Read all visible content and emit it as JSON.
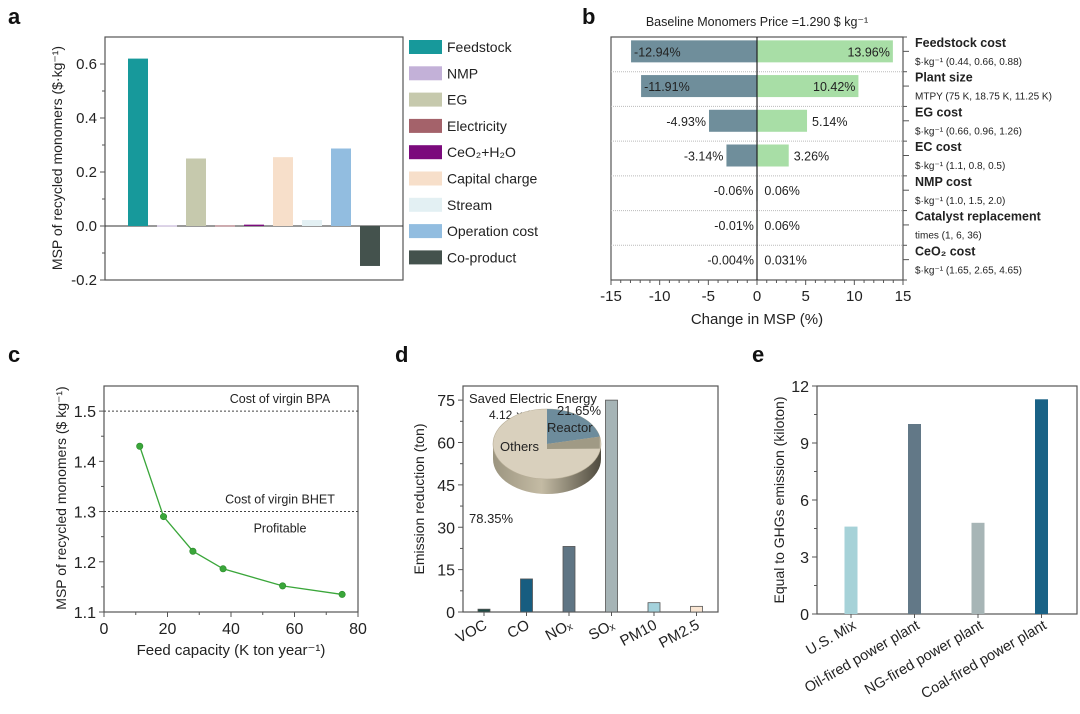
{
  "panels": {
    "a": "a",
    "b": "b",
    "c": "c",
    "d": "d",
    "e": "e"
  },
  "chart_data": [
    {
      "id": "a",
      "type": "bar",
      "title": "",
      "xlabel": "",
      "ylabel": "MSP of recycled monomers ($·kg⁻¹)",
      "ylim": [
        -0.2,
        0.7
      ],
      "yticks": [
        "-0.2",
        "0.0",
        "0.2",
        "0.4",
        "0.6"
      ],
      "ytick_values": [
        -0.2,
        0.0,
        0.2,
        0.4,
        0.6
      ],
      "legend_position": "right",
      "categories": [
        "Feedstock",
        "NMP",
        "EG",
        "Electricity",
        "CeO₂+H₂O",
        "Capital charge",
        "Stream",
        "Operation cost",
        "Co-product"
      ],
      "values": [
        0.62,
        0.002,
        0.25,
        0.002,
        0.005,
        0.255,
        0.022,
        0.287,
        -0.148
      ],
      "colors": [
        "#17999b",
        "#c3b1d8",
        "#c6c9ad",
        "#a4626a",
        "#7b0a7c",
        "#f7dfca",
        "#e3f0f3",
        "#92bde0",
        "#44524d"
      ]
    },
    {
      "id": "b",
      "type": "bar",
      "orientation": "horizontal-tornado",
      "title": "Baseline Monomers Price =1.290 $ kg⁻¹",
      "xlabel": "Change in MSP (%)",
      "xlim": [
        -15,
        15
      ],
      "xticks": [
        "-15",
        "-10",
        "-5",
        "0",
        "5",
        "10",
        "15"
      ],
      "xtick_values": [
        -15,
        -10,
        -5,
        0,
        5,
        10,
        15
      ],
      "factors": [
        {
          "name": "Feedstock cost",
          "range": "$·kg⁻¹ (0.44, 0.66, 0.88)",
          "low": -12.94,
          "high": 13.96,
          "low_label": "-12.94%",
          "high_label": "13.96%"
        },
        {
          "name": "Plant size",
          "range": "MTPY (75 K, 18.75 K, 11.25 K)",
          "low": -11.91,
          "high": 10.42,
          "low_label": "-11.91%",
          "high_label": "10.42%"
        },
        {
          "name": "EG cost",
          "range": "$·kg⁻¹ (0.66, 0.96, 1.26)",
          "low": -4.93,
          "high": 5.14,
          "low_label": "-4.93%",
          "high_label": "5.14%"
        },
        {
          "name": "EC cost",
          "range": "$·kg⁻¹ (1.1, 0.8, 0.5)",
          "low": -3.14,
          "high": 3.26,
          "low_label": "-3.14%",
          "high_label": "3.26%"
        },
        {
          "name": "NMP cost",
          "range": "$·kg⁻¹ (1.0, 1.5, 2.0)",
          "low": -0.06,
          "high": 0.06,
          "low_label": "-0.06%",
          "high_label": "0.06%"
        },
        {
          "name": "Catalyst replacement",
          "range": "times (1, 6, 36)",
          "low": -0.01,
          "high": 0.06,
          "low_label": "-0.01%",
          "high_label": "0.06%"
        },
        {
          "name": "CeO₂ cost",
          "range": "$·kg⁻¹ (1.65, 2.65, 4.65)",
          "low": -0.004,
          "high": 0.031,
          "low_label": "-0.004%",
          "high_label": "0.031%"
        }
      ],
      "colors": {
        "negative": "#6f8e9b",
        "positive": "#a8dea6"
      }
    },
    {
      "id": "c",
      "type": "line",
      "title": "",
      "xlabel": "Feed capacity (K ton year⁻¹)",
      "ylabel": "MSP of recycled monomers ($ kg⁻¹)",
      "xlim": [
        0,
        80
      ],
      "ylim": [
        1.1,
        1.55
      ],
      "xticks": [
        "0",
        "20",
        "40",
        "60",
        "80"
      ],
      "xtick_values": [
        0,
        20,
        40,
        60,
        80
      ],
      "yticks": [
        "1.1",
        "1.2",
        "1.3",
        "1.4",
        "1.5"
      ],
      "ytick_values": [
        1.1,
        1.2,
        1.3,
        1.4,
        1.5
      ],
      "x": [
        11.25,
        18.75,
        28,
        37.5,
        56.25,
        75
      ],
      "y": [
        1.43,
        1.29,
        1.221,
        1.186,
        1.152,
        1.135
      ],
      "color": "#3aa63a",
      "reference_lines": [
        {
          "y": 1.5,
          "label": "Cost of virgin BPA"
        },
        {
          "y": 1.3,
          "label": "Cost of virgin BHET"
        }
      ],
      "annotations": [
        "Profitable"
      ]
    },
    {
      "id": "d",
      "type": "bar",
      "title": "",
      "xlabel": "",
      "ylabel": "Emission reduction (ton)",
      "ylim": [
        0,
        80
      ],
      "yticks": [
        "0",
        "15",
        "30",
        "45",
        "60",
        "75"
      ],
      "ytick_values": [
        0,
        15,
        30,
        45,
        60,
        75
      ],
      "categories": [
        "VOC",
        "CO",
        "NOₓ",
        "SOₓ",
        "PM10",
        "PM2.5"
      ],
      "values": [
        1.0,
        11.7,
        23.2,
        75.0,
        3.3,
        2.0
      ],
      "colors": [
        "#1e4a44",
        "#175d80",
        "#5f7584",
        "#a6b4b6",
        "#a4d2dc",
        "#fae6d3"
      ],
      "inset_pie": {
        "title": "Saved Electric Energy",
        "subtitle": "4.12 × 10¹⁰ kJ",
        "slices": [
          {
            "label": "Reactor",
            "value": 21.65,
            "value_label": "21.65%",
            "color": "#6d8c9c"
          },
          {
            "label": "Others",
            "value": 78.35,
            "value_label": "78.35%",
            "color": "#d9d0bd"
          }
        ]
      }
    },
    {
      "id": "e",
      "type": "bar",
      "title": "",
      "xlabel": "",
      "ylabel": "Equal to GHGs emission (kiloton)",
      "ylim": [
        0,
        12
      ],
      "yticks": [
        "0",
        "3",
        "6",
        "9",
        "12"
      ],
      "ytick_values": [
        0,
        3,
        6,
        9,
        12
      ],
      "categories": [
        "U.S. Mix",
        "Oil-fired power plant",
        "NG-fired power plant",
        "Coal-fired power plant"
      ],
      "values": [
        4.6,
        10.0,
        4.8,
        11.3
      ],
      "colors": [
        "#a6d2d8",
        "#627887",
        "#a7b5b6",
        "#196286"
      ]
    }
  ]
}
